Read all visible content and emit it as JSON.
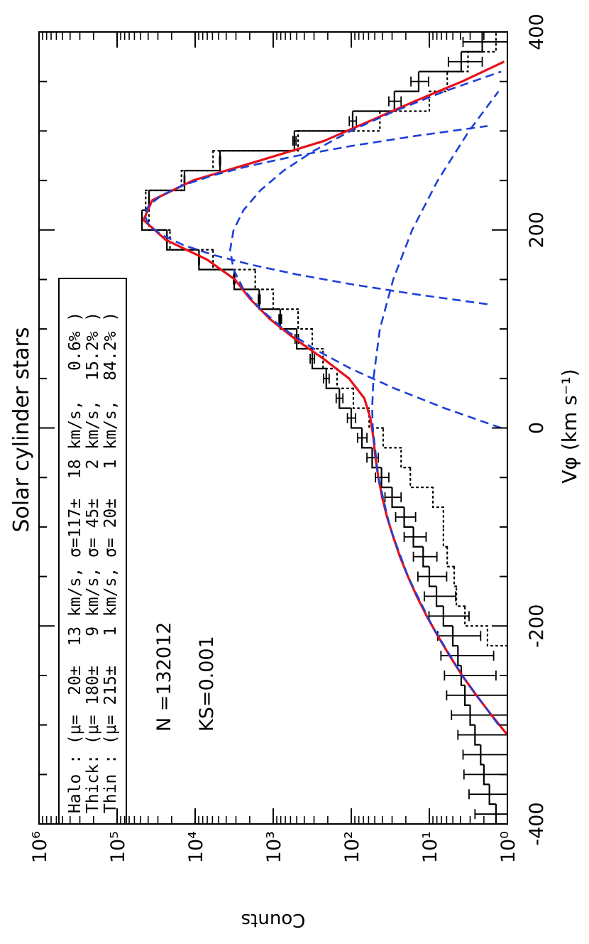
{
  "chart_data": {
    "type": "histogram",
    "title": "Solar cylinder stars",
    "xlabel": "Vφ (km s⁻¹)",
    "ylabel": "Counts",
    "log_y": true,
    "xlim": [
      -400,
      400
    ],
    "ylim": [
      1,
      1000000
    ],
    "xticks": [
      -400,
      -200,
      0,
      200,
      400
    ],
    "xminorticks": [
      -350,
      -300,
      -250,
      -150,
      -100,
      -50,
      50,
      100,
      150,
      250,
      300,
      350
    ],
    "yticks": [
      {
        "value": 1,
        "label": "10⁰"
      },
      {
        "value": 10,
        "label": "10¹"
      },
      {
        "value": 100,
        "label": "10²"
      },
      {
        "value": 1000,
        "label": "10³"
      },
      {
        "value": 10000,
        "label": "10⁴"
      },
      {
        "value": 100000,
        "label": "10⁵"
      },
      {
        "value": 1000000,
        "label": "10⁶"
      }
    ],
    "bins": [
      -400,
      -380,
      -360,
      -340,
      -320,
      -300,
      -280,
      -260,
      -240,
      -220,
      -200,
      -180,
      -160,
      -140,
      -120,
      -100,
      -80,
      -60,
      -40,
      -20,
      0,
      20,
      40,
      60,
      80,
      100,
      120,
      140,
      160,
      180,
      200,
      220,
      240,
      260,
      280,
      300,
      320,
      340,
      360,
      380,
      400
    ],
    "histograms": [
      {
        "style": "solid",
        "color": "#000000",
        "values": [
          1.4,
          1.7,
          2.0,
          2.2,
          2.6,
          3.0,
          3.5,
          3.9,
          4.3,
          5.0,
          6.6,
          8.1,
          10,
          12,
          16,
          21,
          30,
          41,
          54,
          73,
          100,
          142,
          209,
          316,
          500,
          813,
          1510,
          3160,
          8930,
          23000,
          48000,
          39000,
          13700,
          4800,
          535,
          96,
          28,
          13.7,
          3.9,
          2.1
        ],
        "errors": [
          1.2,
          1.4,
          1.6,
          1.5,
          1.7,
          2.2,
          2.5,
          2.5,
          2.8,
          2.8,
          3.5,
          3.5,
          4,
          4,
          5,
          6,
          7,
          8,
          9,
          10,
          12,
          14,
          17,
          20,
          25,
          30,
          40,
          60,
          100,
          150,
          200,
          200,
          120,
          70,
          25,
          10,
          5,
          3.5,
          1.8,
          1.6
        ]
      },
      {
        "style": "dotted",
        "color": "#000000",
        "values": [
          null,
          null,
          null,
          null,
          null,
          null,
          null,
          null,
          null,
          1.8,
          3.5,
          4.5,
          4.8,
          5.9,
          6.6,
          6.6,
          9,
          17.5,
          23,
          39,
          59,
          94,
          152,
          230,
          316,
          480,
          1000,
          1700,
          5900,
          21000,
          39000,
          43000,
          15000,
          5900,
          480,
          43,
          10,
          5.9,
          3.2,
          1.4
        ]
      }
    ],
    "curves": [
      {
        "style": "solid",
        "color": "#e8101a",
        "x": [
          -310,
          -290,
          -270,
          -250,
          -230,
          -210,
          -190,
          -170,
          -150,
          -130,
          -110,
          -90,
          -70,
          -50,
          -30,
          -10,
          10,
          30,
          50,
          70,
          90,
          110,
          130,
          150,
          170,
          190,
          210,
          230,
          250,
          270,
          290,
          310,
          330,
          350,
          370
        ],
        "values": [
          1.0,
          1.6,
          2.5,
          3.8,
          5.5,
          7.8,
          10.8,
          14.5,
          18.8,
          23.8,
          29,
          34.8,
          40.2,
          45,
          49,
          52,
          57,
          68,
          107,
          228,
          527,
          1102,
          1959,
          3102,
          7015,
          23786,
          45822,
          35430,
          10660,
          1497,
          222,
          58,
          15.4,
          3.8,
          1.1
        ]
      },
      {
        "style": "dashed",
        "color": "#1d3fd8",
        "x": [
          125,
          135,
          145,
          155,
          165,
          175,
          185,
          195,
          205,
          215,
          225,
          235,
          245,
          255,
          265,
          275,
          285,
          295,
          305
        ],
        "values": [
          1.8,
          14.9,
          97,
          492,
          1950,
          6000,
          14400,
          26900,
          39200,
          44340,
          39200,
          26900,
          14400,
          6000,
          1950,
          492,
          97,
          14.9,
          1.8
        ]
      },
      {
        "style": "dashed",
        "color": "#1d3fd8",
        "x": [
          0,
          20,
          40,
          60,
          80,
          100,
          120,
          140,
          160,
          180,
          200,
          220,
          240,
          260,
          280,
          300,
          320,
          340,
          360
        ],
        "values": [
          1.2,
          6.4,
          28,
          102,
          301,
          733,
          1460,
          2400,
          3220,
          3558,
          3220,
          2400,
          1460,
          733,
          301,
          102,
          28,
          6.4,
          1.2
        ]
      },
      {
        "style": "dashed",
        "color": "#1d3fd8",
        "x": [
          -300,
          -250,
          -200,
          -150,
          -100,
          -50,
          0,
          20,
          50,
          100,
          150,
          200,
          250,
          300,
          340
        ],
        "values": [
          1.3,
          3.8,
          9.2,
          18.8,
          32,
          45,
          53,
          54,
          52,
          43,
          29,
          16.6,
          7.8,
          3.1,
          1.3
        ]
      }
    ],
    "legend_lines": [
      "Halo : (μ=  20±  13 km/s, σ=117±  18 km/s,   0.6% )",
      "Thick: (μ= 180±   9 km/s, σ= 45±   2 km/s,  15.2% )",
      "Thin : (μ= 215±   1 km/s, σ= 20±   1 km/s,  84.2% )"
    ],
    "annotations": [
      "N =132012",
      "KS=0.001"
    ]
  }
}
